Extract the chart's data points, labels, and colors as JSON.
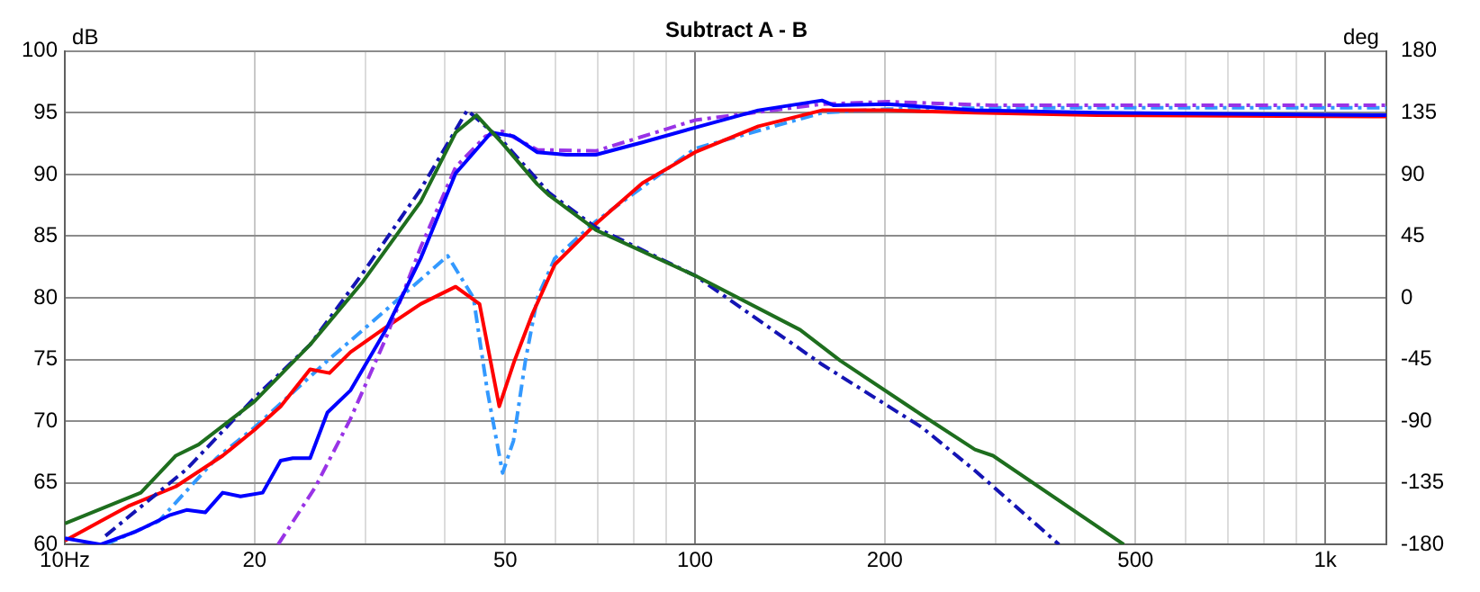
{
  "chart_data": {
    "type": "line",
    "title": "Subtract A - B",
    "ylabel": "dB",
    "y2label": "deg",
    "log": "x",
    "grid": true,
    "marker": "none",
    "xlim": [
      10,
      1250
    ],
    "xticks": [
      {
        "value": 10,
        "label": "10Hz"
      },
      20,
      {
        "value": 30,
        "label": null
      },
      {
        "value": 40,
        "label": null
      },
      50,
      {
        "value": 60,
        "label": null
      },
      {
        "value": 70,
        "label": null
      },
      {
        "value": 80,
        "label": null
      },
      {
        "value": 90,
        "label": null
      },
      100,
      200,
      {
        "value": 300,
        "label": null
      },
      {
        "value": 400,
        "label": null
      },
      500,
      {
        "value": 600,
        "label": null
      },
      {
        "value": 700,
        "label": null
      },
      {
        "value": 800,
        "label": null
      },
      {
        "value": 900,
        "label": null
      },
      {
        "value": 1000,
        "label": "1k"
      }
    ],
    "ylim": [
      60,
      100
    ],
    "yticks": [
      60,
      65,
      70,
      75,
      80,
      85,
      90,
      95,
      100
    ],
    "y2lim": [
      -180,
      180
    ],
    "y2ticks": [
      -180,
      -135,
      -90,
      -45,
      0,
      45,
      90,
      135,
      180
    ],
    "series": [
      {
        "color": "#1e6e1e",
        "line_style": "solid",
        "x": [
          10,
          13.2,
          15,
          16.3,
          20,
          24.5,
          29.7,
          36.7,
          41.7,
          45,
          49.5,
          56.2,
          58.7,
          69.6,
          100,
          146.8,
          170,
          229,
          278,
          297,
          479
        ],
        "values": [
          61.7,
          64.2,
          67.2,
          68.1,
          71.6,
          76.2,
          81.3,
          87.8,
          93.4,
          94.8,
          92.5,
          89.2,
          88.3,
          85.5,
          81.8,
          77.4,
          74.9,
          70.5,
          67.7,
          67.2,
          60
        ]
      },
      {
        "color": "#1414b4",
        "line_style": "dashed",
        "x": [
          11.6,
          15.6,
          20,
          24.5,
          29.7,
          36.7,
          43.5,
          49.5,
          58.7,
          69.6,
          100,
          159,
          229,
          278,
          378
        ],
        "values": [
          60.7,
          66.1,
          71.9,
          76.2,
          82,
          88.8,
          95.2,
          92.7,
          88.5,
          85.7,
          81.8,
          74.6,
          69.5,
          66,
          60
        ]
      },
      {
        "color": "#0000ff",
        "line_style": "solid",
        "x": [
          10,
          11.4,
          12.9,
          14.7,
          15.6,
          16.7,
          17.8,
          19,
          20.6,
          22,
          23,
          24.5,
          26.1,
          28.4,
          32.3,
          36.7,
          41.7,
          47.5,
          51.5,
          56.2,
          62.5,
          69.6,
          82.5,
          100,
          126,
          159,
          166,
          202,
          278,
          434,
          1250
        ],
        "values": [
          60.5,
          60,
          61,
          62.4,
          62.8,
          62.6,
          64.2,
          63.9,
          64.2,
          66.8,
          67,
          67,
          70.7,
          72.5,
          77.4,
          83.2,
          90.1,
          93.4,
          93.1,
          91.8,
          91.6,
          91.6,
          92.6,
          93.8,
          95.2,
          96,
          95.6,
          95.7,
          95.2,
          95,
          94.8
        ]
      },
      {
        "color": "#9933e6",
        "line_style": "dashed",
        "x": [
          21.8,
          25,
          28.4,
          32.3,
          36.7,
          41.7,
          46.5,
          49.5,
          56.2,
          69.6,
          100,
          159,
          202,
          300,
          1250
        ],
        "values": [
          60,
          64.7,
          70.2,
          76.7,
          84.1,
          90.6,
          93.1,
          93.5,
          92,
          91.9,
          94.4,
          95.7,
          95.9,
          95.6,
          95.6
        ]
      },
      {
        "color": "#ff0000",
        "line_style": "solid",
        "x": [
          10,
          11.4,
          12.6,
          15,
          17.8,
          20,
          22,
          24.5,
          26.3,
          28.4,
          32.3,
          36.7,
          41.7,
          45.5,
          48.9,
          51.7,
          55.1,
          59.9,
          69.6,
          82.5,
          100,
          126,
          159,
          202,
          278,
          434,
          1250
        ],
        "values": [
          60.3,
          61.9,
          63.1,
          64.7,
          67.2,
          69.3,
          71.2,
          74.2,
          73.9,
          75.6,
          77.6,
          79.5,
          80.9,
          79.5,
          71.2,
          74.9,
          78.6,
          82.7,
          86,
          89.3,
          91.8,
          93.9,
          95.2,
          95.2,
          95,
          94.8,
          94.7
        ]
      },
      {
        "color": "#3399ff",
        "line_style": "dashed",
        "x": [
          11.6,
          14.1,
          17.4,
          20,
          26.1,
          32.3,
          40.5,
          44.5,
          46.8,
          49.5,
          51.5,
          53.8,
          56.2,
          59.9,
          69.6,
          100,
          159,
          202,
          300,
          1250
        ],
        "values": [
          60,
          61.9,
          67,
          69.5,
          74.9,
          79,
          83.4,
          80,
          72.5,
          65.8,
          68.4,
          74.9,
          80,
          83.2,
          86.2,
          92.1,
          95,
          95.3,
          95.4,
          95.4
        ]
      }
    ]
  }
}
